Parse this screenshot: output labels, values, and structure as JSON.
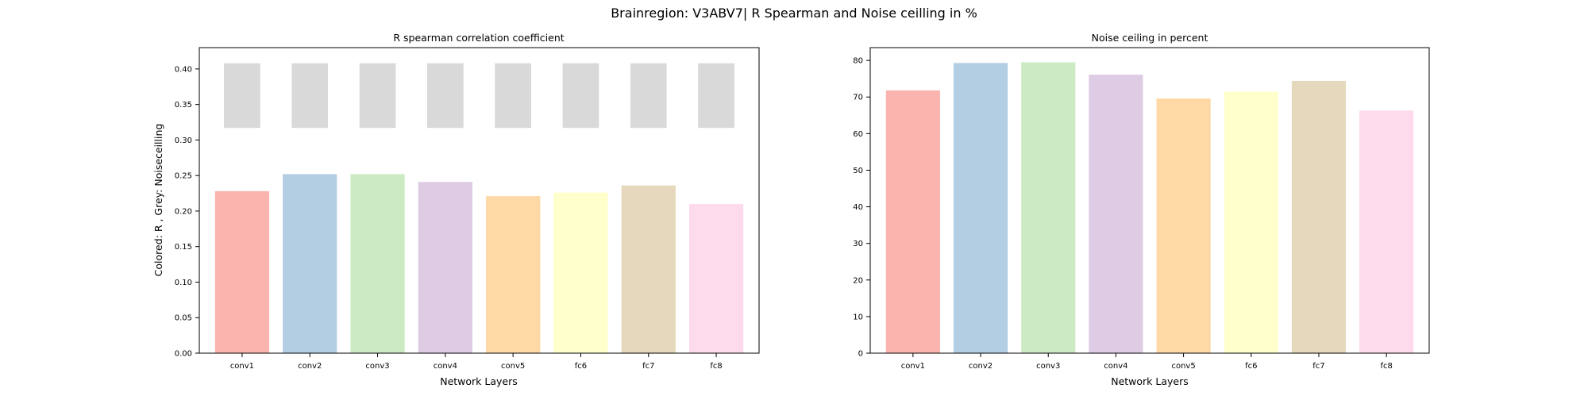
{
  "figure": {
    "suptitle": "Brainregion: V3ABV7| R Spearman and Noise ceilling in %"
  },
  "chart_data": [
    {
      "type": "bar",
      "title": "R spearman correlation coefficient",
      "xlabel": "Network Layers",
      "ylabel": "Colored: R , Grey: Noiseceilling",
      "categories": [
        "conv1",
        "conv2",
        "conv3",
        "conv4",
        "conv5",
        "fc6",
        "fc7",
        "fc8"
      ],
      "ylim": [
        0,
        0.43
      ],
      "yticks": [
        0.0,
        0.05,
        0.1,
        0.15,
        0.2,
        0.25,
        0.3,
        0.35,
        0.4
      ],
      "ytick_labels": [
        "0.00",
        "0.05",
        "0.10",
        "0.15",
        "0.20",
        "0.25",
        "0.30",
        "0.35",
        "0.40"
      ],
      "series": [
        {
          "values": [
            0.228,
            0.252,
            0.252,
            0.241,
            0.221,
            0.226,
            0.236,
            0.21
          ],
          "colors": [
            "#fbb4ae",
            "#b3cde3",
            "#ccebc5",
            "#decbe4",
            "#fed9a6",
            "#ffffcc",
            "#e5d8bd",
            "#fddaec"
          ]
        },
        {
          "type": "floating-bar",
          "bottom": [
            0.317,
            0.317,
            0.317,
            0.317,
            0.317,
            0.317,
            0.317,
            0.317
          ],
          "top": [
            0.408,
            0.408,
            0.408,
            0.408,
            0.408,
            0.408,
            0.408,
            0.408
          ],
          "color": "#d9d9d9"
        }
      ],
      "grid": false
    },
    {
      "type": "bar",
      "title": "Noise ceiling in percent",
      "xlabel": "Network Layers",
      "ylabel": "",
      "categories": [
        "conv1",
        "conv2",
        "conv3",
        "conv4",
        "conv5",
        "fc6",
        "fc7",
        "fc8"
      ],
      "ylim": [
        0,
        83.5
      ],
      "yticks": [
        0,
        10,
        20,
        30,
        40,
        50,
        60,
        70,
        80
      ],
      "ytick_labels": [
        "0",
        "10",
        "20",
        "30",
        "40",
        "50",
        "60",
        "70",
        "80"
      ],
      "series": [
        {
          "values": [
            71.8,
            79.3,
            79.5,
            76.1,
            69.6,
            71.5,
            74.4,
            66.3
          ],
          "colors": [
            "#fbb4ae",
            "#b3cde3",
            "#ccebc5",
            "#decbe4",
            "#fed9a6",
            "#ffffcc",
            "#e5d8bd",
            "#fddaec"
          ]
        }
      ],
      "grid": false
    }
  ]
}
